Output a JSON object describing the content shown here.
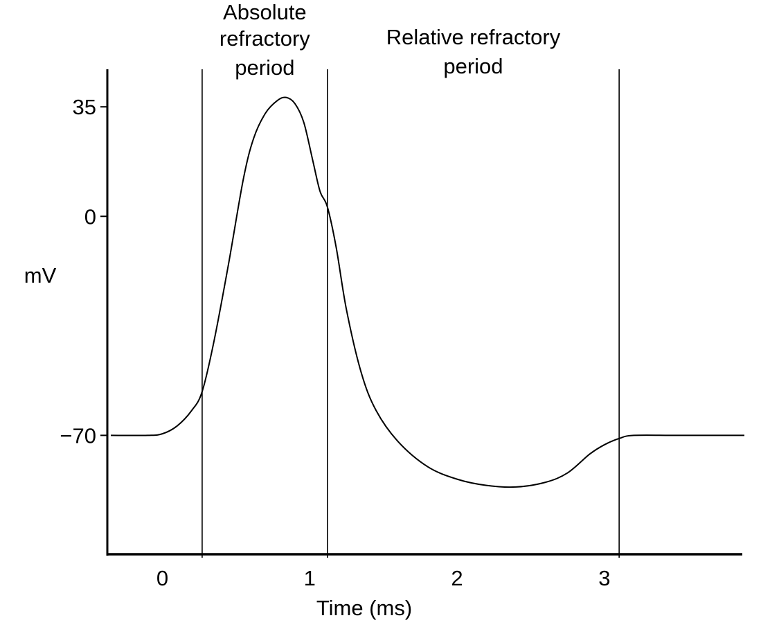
{
  "chart_data": {
    "type": "line",
    "title": "",
    "xlabel": "Time (ms)",
    "ylabel": "mV",
    "xlim": [
      -0.35,
      3.95
    ],
    "ylim": [
      -108,
      47
    ],
    "x_ticks": [
      {
        "value": 0,
        "label": "0"
      },
      {
        "value": 1,
        "label": "1"
      },
      {
        "value": 2,
        "label": "2"
      },
      {
        "value": 3,
        "label": "3"
      }
    ],
    "y_ticks": [
      {
        "value": 35,
        "label": "35"
      },
      {
        "value": 0,
        "label": "0"
      },
      {
        "value": -70,
        "label": "−70"
      }
    ],
    "grid": false,
    "legend": "none",
    "colors": {
      "line": "#000000",
      "axes": "#000000",
      "background": "#ffffff"
    },
    "regions": [
      {
        "label_lines": [
          "Absolute",
          "refractory",
          "period"
        ],
        "start": 0.27,
        "end": 1.12
      },
      {
        "label_lines": [
          "Relative refractory",
          "period"
        ],
        "start": 1.12,
        "end": 3.1
      }
    ],
    "series": [
      {
        "x": [
          -0.35,
          -0.1,
          0.0,
          0.1,
          0.2,
          0.27,
          0.35,
          0.45,
          0.55,
          0.62,
          0.7,
          0.78,
          0.84,
          0.9,
          0.96,
          1.02,
          1.07,
          1.12,
          1.18,
          1.25,
          1.35,
          1.45,
          1.6,
          1.8,
          2.0,
          2.2,
          2.4,
          2.6,
          2.75,
          2.9,
          3.0,
          3.1,
          3.2,
          3.5,
          3.95
        ],
        "y": [
          -70,
          -70,
          -69.5,
          -67,
          -62,
          -56,
          -40,
          -15,
          12,
          25,
          33,
          37,
          38,
          36,
          30,
          18,
          8,
          3,
          -10,
          -30,
          -50,
          -62,
          -72,
          -80,
          -84,
          -86,
          -86.5,
          -85,
          -82,
          -76,
          -73,
          -71,
          -70,
          -70,
          -70
        ]
      }
    ]
  }
}
